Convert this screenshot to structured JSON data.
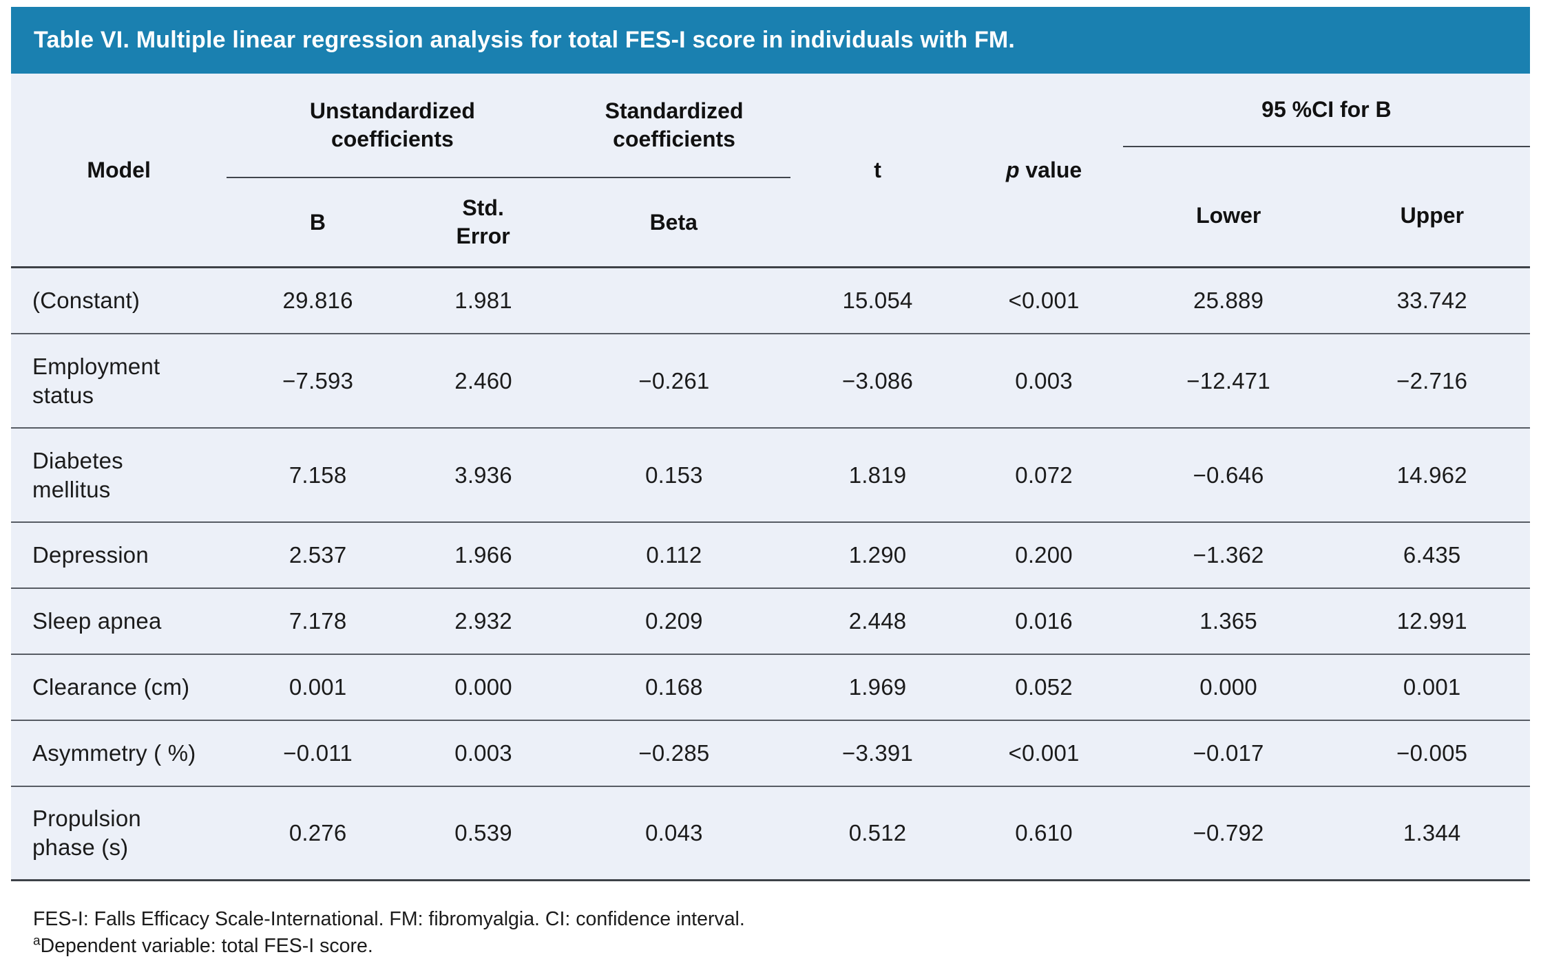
{
  "title": "Table VI. Multiple linear regression analysis for total FES-I score in individuals with FM.",
  "colors": {
    "title_bar_bg": "#1a80b0",
    "title_text": "#ffffff",
    "table_bg": "#ecf0f8",
    "rule_dark": "#3d4147",
    "rule_row": "#565b63"
  },
  "header": {
    "model": "Model",
    "group_unstandardized": "Unstandardized\ncoefficients",
    "group_standardized": "Standardized\ncoefficients",
    "sub_b": "B",
    "sub_std_error": "Std.\nError",
    "sub_beta": "Beta",
    "t": "t",
    "p_italic": "p",
    "p_rest": " value",
    "group_ci": "95 %CI for B",
    "sub_lower": "Lower",
    "sub_upper": "Upper"
  },
  "rows": [
    {
      "model": "(Constant)",
      "b": "29.816",
      "std_error": "1.981",
      "beta": "",
      "t": "15.054",
      "p": "<0.001",
      "lower": "25.889",
      "upper": "33.742"
    },
    {
      "model": "Employment\nstatus",
      "b": "−7.593",
      "std_error": "2.460",
      "beta": "−0.261",
      "t": "−3.086",
      "p": "0.003",
      "lower": "−12.471",
      "upper": "−2.716"
    },
    {
      "model": "Diabetes\nmellitus",
      "b": "7.158",
      "std_error": "3.936",
      "beta": "0.153",
      "t": "1.819",
      "p": "0.072",
      "lower": "−0.646",
      "upper": "14.962"
    },
    {
      "model": "Depression",
      "b": "2.537",
      "std_error": "1.966",
      "beta": "0.112",
      "t": "1.290",
      "p": "0.200",
      "lower": "−1.362",
      "upper": "6.435"
    },
    {
      "model": "Sleep apnea",
      "b": "7.178",
      "std_error": "2.932",
      "beta": "0.209",
      "t": "2.448",
      "p": "0.016",
      "lower": "1.365",
      "upper": "12.991"
    },
    {
      "model": "Clearance (cm)",
      "b": "0.001",
      "std_error": "0.000",
      "beta": "0.168",
      "t": "1.969",
      "p": "0.052",
      "lower": "0.000",
      "upper": "0.001"
    },
    {
      "model": "Asymmetry ( %)",
      "b": "−0.011",
      "std_error": "0.003",
      "beta": "−0.285",
      "t": "−3.391",
      "p": "<0.001",
      "lower": "−0.017",
      "upper": "−0.005"
    },
    {
      "model": "Propulsion\nphase (s)",
      "b": "0.276",
      "std_error": "0.539",
      "beta": "0.043",
      "t": "0.512",
      "p": "0.610",
      "lower": "−0.792",
      "upper": "1.344"
    }
  ],
  "footnotes": {
    "line1": "FES-I: Falls Efficacy Scale-International. FM: fibromyalgia. CI: confidence interval.",
    "line2_sup": "a",
    "line2": "Dependent variable: total FES-I score."
  }
}
